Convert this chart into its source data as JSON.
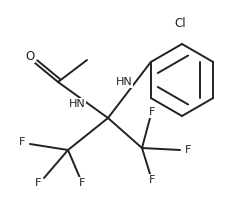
{
  "bg_color": "#ffffff",
  "line_color": "#222222",
  "line_width": 1.4,
  "font_size": 8.0,
  "fig_width": 2.34,
  "fig_height": 2.0,
  "dpi": 100,
  "xlim": [
    0,
    234
  ],
  "ylim": [
    0,
    200
  ]
}
